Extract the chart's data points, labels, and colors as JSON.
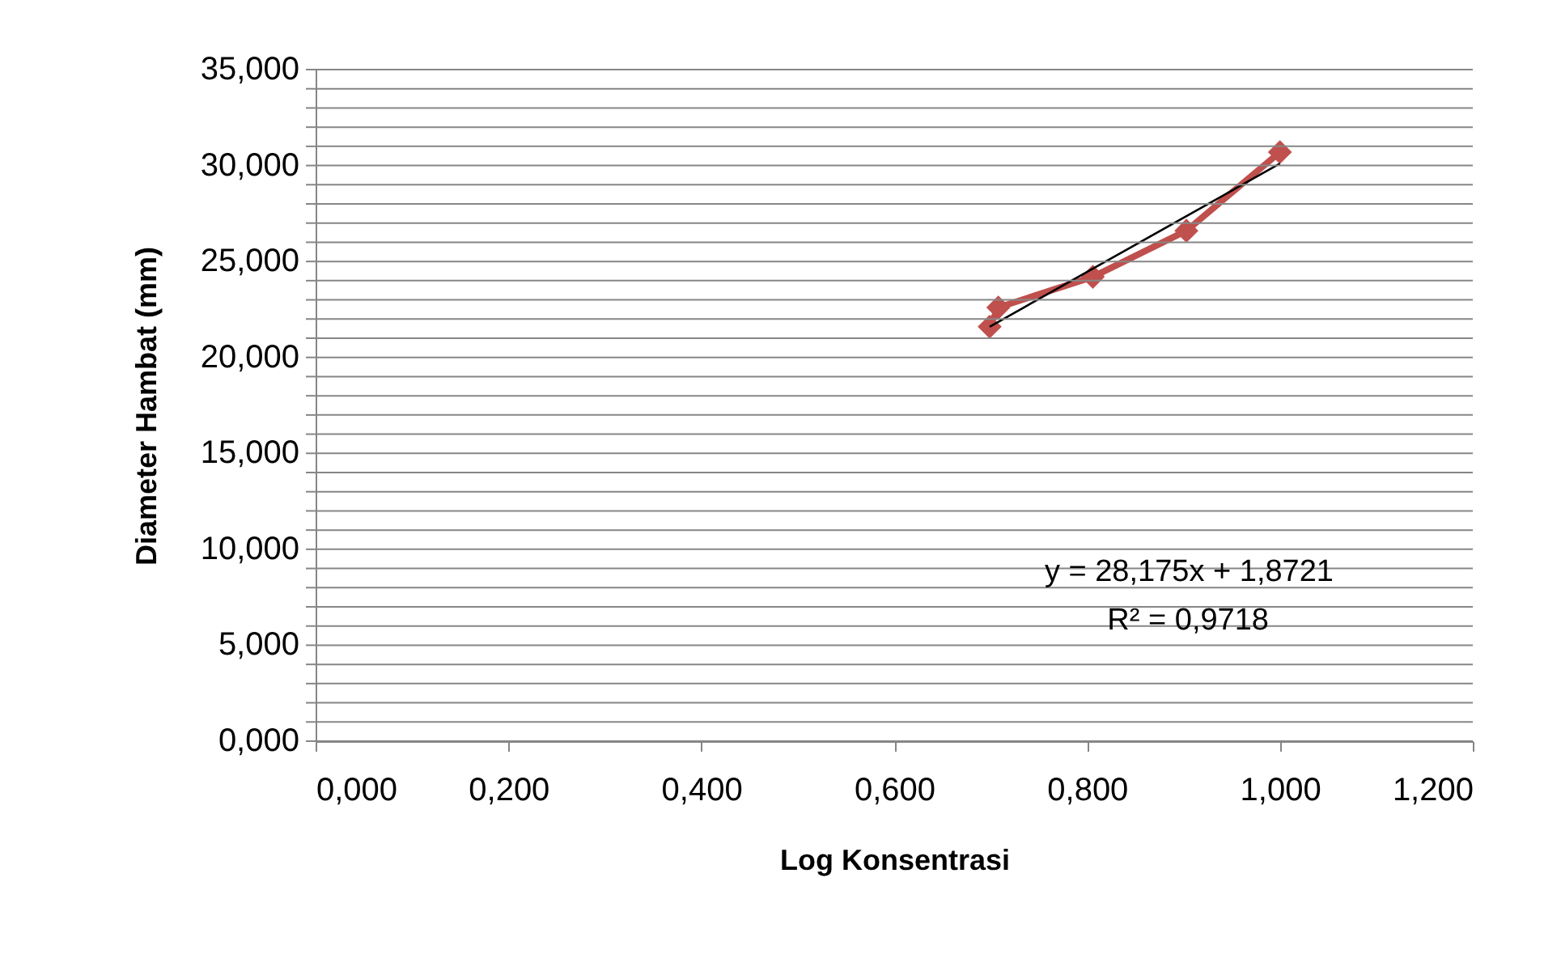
{
  "chart_data": {
    "type": "line",
    "xlabel": "Log Konsentrasi",
    "ylabel": "Diameter Hambat (mm)",
    "xlim": [
      0,
      1.2
    ],
    "ylim": [
      0,
      35
    ],
    "xticks": [
      {
        "value": 0,
        "label": "0,000"
      },
      {
        "value": 0.2,
        "label": "0,200"
      },
      {
        "value": 0.4,
        "label": "0,400"
      },
      {
        "value": 0.6,
        "label": "0,600"
      },
      {
        "value": 0.8,
        "label": "0,800"
      },
      {
        "value": 1.0,
        "label": "1,000"
      },
      {
        "value": 1.2,
        "label": "1,200"
      }
    ],
    "yticks": [
      {
        "value": 0,
        "label": "0,000"
      },
      {
        "value": 1,
        "label": null
      },
      {
        "value": 2,
        "label": null
      },
      {
        "value": 3,
        "label": null
      },
      {
        "value": 4,
        "label": null
      },
      {
        "value": 5,
        "label": "5,000"
      },
      {
        "value": 6,
        "label": null
      },
      {
        "value": 7,
        "label": null
      },
      {
        "value": 8,
        "label": null
      },
      {
        "value": 9,
        "label": null
      },
      {
        "value": 10,
        "label": "10,000"
      },
      {
        "value": 11,
        "label": null
      },
      {
        "value": 12,
        "label": null
      },
      {
        "value": 13,
        "label": null
      },
      {
        "value": 14,
        "label": null
      },
      {
        "value": 15,
        "label": "15,000"
      },
      {
        "value": 16,
        "label": null
      },
      {
        "value": 17,
        "label": null
      },
      {
        "value": 18,
        "label": null
      },
      {
        "value": 19,
        "label": null
      },
      {
        "value": 20,
        "label": "20,000"
      },
      {
        "value": 21,
        "label": null
      },
      {
        "value": 22,
        "label": null
      },
      {
        "value": 23,
        "label": null
      },
      {
        "value": 24,
        "label": null
      },
      {
        "value": 25,
        "label": "25,000"
      },
      {
        "value": 26,
        "label": null
      },
      {
        "value": 27,
        "label": null
      },
      {
        "value": 28,
        "label": null
      },
      {
        "value": 29,
        "label": null
      },
      {
        "value": 30,
        "label": "30,000"
      },
      {
        "value": 31,
        "label": null
      },
      {
        "value": 32,
        "label": null
      },
      {
        "value": 33,
        "label": null
      },
      {
        "value": 34,
        "label": null
      },
      {
        "value": 35,
        "label": "35,000"
      }
    ],
    "grid": "y",
    "series": [
      {
        "color": "#c0504d",
        "marker": "diamond",
        "line_style": "solid",
        "x": [
          0.699,
          0.708,
          0.806,
          0.903,
          1.0
        ],
        "values": [
          21.6,
          22.6,
          24.2,
          26.6,
          30.7
        ]
      },
      {
        "color": "#000000",
        "marker": "none",
        "line_style": "solid",
        "x": [
          0.699,
          1.0
        ],
        "values": [
          21.6,
          30.1
        ]
      }
    ],
    "annotations": [
      "y = 28,175x + 1,8721",
      "R² = 0,9718"
    ]
  }
}
